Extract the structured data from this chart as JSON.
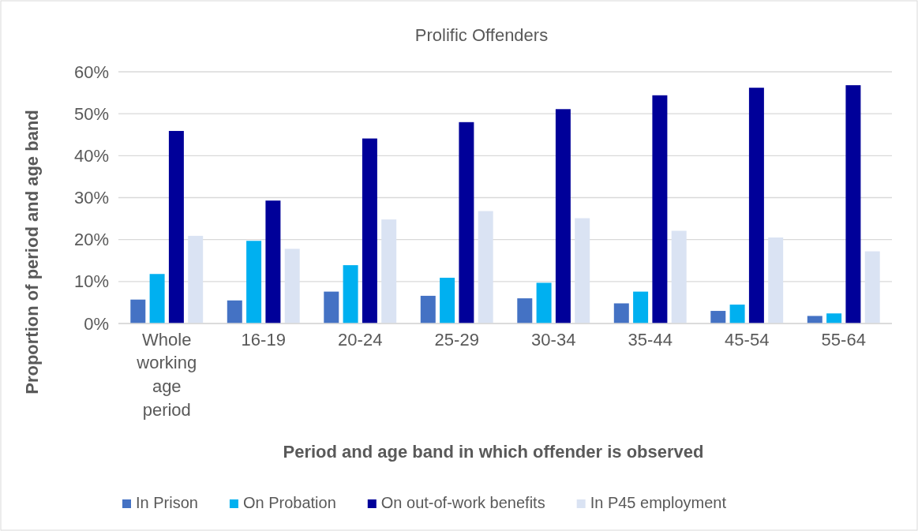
{
  "chart_data": {
    "type": "bar",
    "title": "Prolific Offenders",
    "xlabel": "Period and age band in which offender is observed",
    "ylabel": "Proportion of period and age band",
    "categories": [
      "Whole working age period",
      "16-19",
      "20-24",
      "25-29",
      "30-34",
      "35-44",
      "45-54",
      "55-64"
    ],
    "series": [
      {
        "name": "In Prison",
        "color": "#4472c4",
        "values": [
          5.7,
          5.5,
          7.6,
          6.6,
          6.0,
          4.8,
          3.0,
          1.8
        ]
      },
      {
        "name": "On Probation",
        "color": "#00b0f0",
        "values": [
          11.8,
          19.7,
          13.9,
          10.9,
          9.7,
          7.6,
          4.5,
          2.4
        ]
      },
      {
        "name": "On out-of-work benefits",
        "color": "#000099",
        "values": [
          45.9,
          29.3,
          44.1,
          48.0,
          51.1,
          54.4,
          56.2,
          56.8
        ]
      },
      {
        "name": "In P45 employment",
        "color": "#dae3f3",
        "values": [
          20.9,
          17.8,
          24.8,
          26.8,
          25.1,
          22.1,
          20.5,
          17.2
        ]
      }
    ],
    "ylim": [
      0,
      60
    ],
    "yticks": [
      {
        "value": 0,
        "label": "0%"
      },
      {
        "value": 10,
        "label": "10%"
      },
      {
        "value": 20,
        "label": "20%"
      },
      {
        "value": 30,
        "label": "30%"
      },
      {
        "value": 40,
        "label": "40%"
      },
      {
        "value": 50,
        "label": "50%"
      },
      {
        "value": 60,
        "label": "60%"
      }
    ],
    "grid": "y",
    "legend": "bottom"
  }
}
